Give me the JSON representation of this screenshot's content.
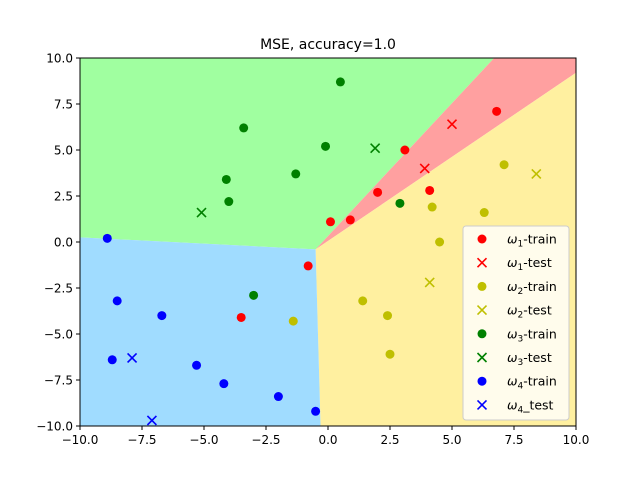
{
  "chart_data": {
    "type": "scatter",
    "title": "MSE, accuracy=1.0",
    "xlabel": "",
    "ylabel": "",
    "xlim": [
      -10,
      10
    ],
    "ylim": [
      -10,
      10
    ],
    "xticks": [
      "−10.0",
      "−7.5",
      "−5.0",
      "−2.5",
      "0.0",
      "2.5",
      "5.0",
      "7.5",
      "10.0"
    ],
    "yticks": [
      "10.0",
      "7.5",
      "5.0",
      "2.5",
      "0.0",
      "−2.5",
      "−5.0",
      "−7.5",
      "−10.0"
    ],
    "grid": false,
    "legend_position": "bottom-right",
    "regions": [
      {
        "class": "ω1",
        "color": "#ffa0a0"
      },
      {
        "class": "ω2",
        "color": "#fff0a0"
      },
      {
        "class": "ω3",
        "color": "#a0ffa0"
      },
      {
        "class": "ω4",
        "color": "#a0dcff"
      }
    ],
    "boundaries": {
      "center": [
        -0.5,
        -0.4
      ],
      "left_end": [
        -10,
        0.25
      ],
      "bottom_end": [
        -0.3,
        -10
      ],
      "upper_top": [
        6.7,
        10
      ],
      "lower_right": [
        10,
        9.2
      ]
    },
    "series": [
      {
        "name": "ω1-train",
        "legend_sub": "1",
        "legend_suffix": "-train",
        "marker": "o",
        "color": "#ff0000",
        "points": [
          [
            6.8,
            7.1
          ],
          [
            3.1,
            5.0
          ],
          [
            4.1,
            2.8
          ],
          [
            2.0,
            2.7
          ],
          [
            0.1,
            1.1
          ],
          [
            0.9,
            1.2
          ],
          [
            -0.8,
            -1.3
          ],
          [
            -3.5,
            -4.1
          ]
        ]
      },
      {
        "name": "ω1-test",
        "legend_sub": "1",
        "legend_suffix": "-test",
        "marker": "x",
        "color": "#ff0000",
        "points": [
          [
            5.0,
            6.4
          ],
          [
            3.9,
            4.0
          ]
        ]
      },
      {
        "name": "ω2-train",
        "legend_sub": "2",
        "legend_suffix": "-train",
        "marker": "o",
        "color": "#bfbf00",
        "points": [
          [
            7.1,
            4.2
          ],
          [
            4.2,
            1.9
          ],
          [
            6.3,
            1.6
          ],
          [
            4.5,
            0.0
          ],
          [
            1.4,
            -3.2
          ],
          [
            2.4,
            -4.0
          ],
          [
            -1.4,
            -4.3
          ],
          [
            2.5,
            -6.1
          ]
        ]
      },
      {
        "name": "ω2-test",
        "legend_sub": "2",
        "legend_suffix": "-test",
        "marker": "x",
        "color": "#bfbf00",
        "points": [
          [
            8.4,
            3.7
          ],
          [
            4.1,
            -2.2
          ]
        ]
      },
      {
        "name": "ω3-train",
        "legend_sub": "3",
        "legend_suffix": "-train",
        "marker": "o",
        "color": "#008000",
        "points": [
          [
            0.5,
            8.7
          ],
          [
            -3.4,
            6.2
          ],
          [
            -0.1,
            5.2
          ],
          [
            -1.3,
            3.7
          ],
          [
            -4.1,
            3.4
          ],
          [
            -4.0,
            2.2
          ],
          [
            2.9,
            2.1
          ],
          [
            -3.0,
            -2.9
          ]
        ]
      },
      {
        "name": "ω3-test",
        "legend_sub": "3",
        "legend_suffix": "-test",
        "marker": "x",
        "color": "#008000",
        "points": [
          [
            1.9,
            5.1
          ],
          [
            -5.1,
            1.6
          ]
        ]
      },
      {
        "name": "ω4-train",
        "legend_sub": "4",
        "legend_suffix": "-train",
        "marker": "o",
        "color": "#0000ff",
        "points": [
          [
            -8.9,
            0.2
          ],
          [
            -8.5,
            -3.2
          ],
          [
            -6.7,
            -4.0
          ],
          [
            -8.7,
            -6.4
          ],
          [
            -5.3,
            -6.7
          ],
          [
            -4.2,
            -7.7
          ],
          [
            -2.0,
            -8.4
          ],
          [
            -0.5,
            -9.2
          ]
        ]
      },
      {
        "name": "ω4_test",
        "legend_sub": "4",
        "legend_suffix": "_test",
        "marker": "x",
        "color": "#0000ff",
        "points": [
          [
            -7.9,
            -6.3
          ],
          [
            -7.1,
            -9.7
          ]
        ]
      }
    ]
  }
}
